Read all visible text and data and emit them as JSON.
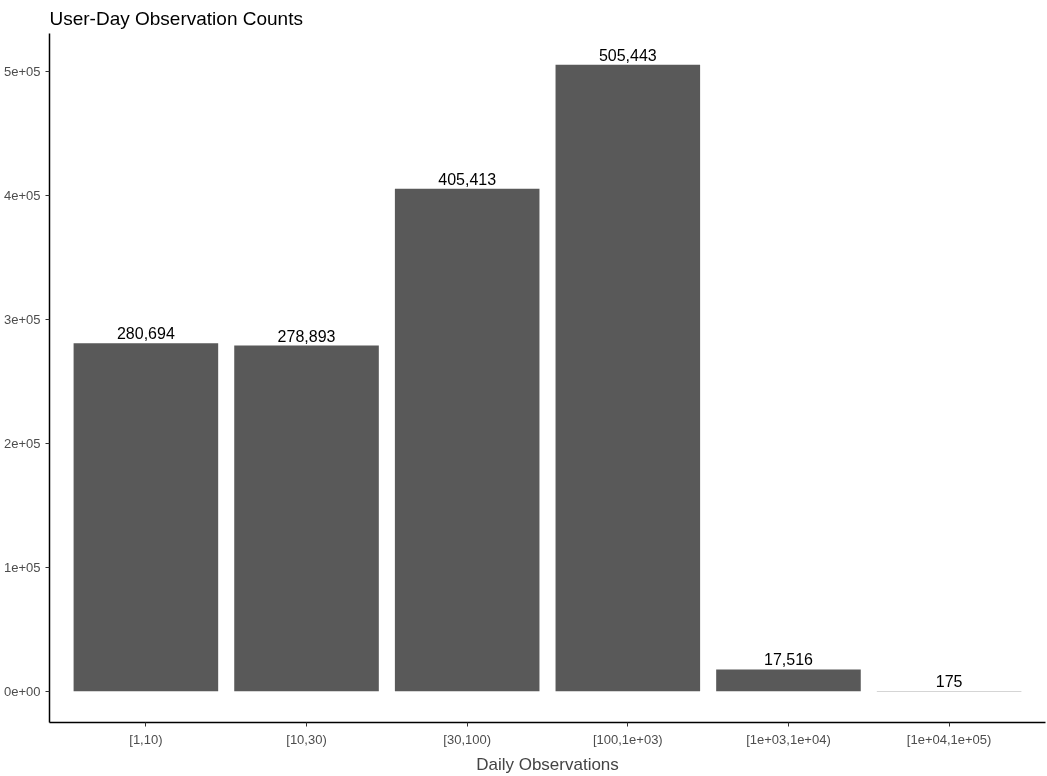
{
  "chart_data": {
    "type": "bar",
    "title": "User-Day Observation Counts",
    "xlabel": "Daily Observations",
    "categories": [
      "[1,10)",
      "[10,30)",
      "[30,100)",
      "[100,1e+03)",
      "[1e+03,1e+04)",
      "[1e+04,1e+05)"
    ],
    "values": [
      280694,
      278893,
      405413,
      505443,
      17516,
      175
    ],
    "color": "#595959",
    "ylim": [
      -25272,
      530715
    ],
    "yticks": [
      {
        "value": 0,
        "label": "0e+00"
      },
      {
        "value": 100000,
        "label": "1e+05"
      },
      {
        "value": 200000,
        "label": "2e+05"
      },
      {
        "value": 300000,
        "label": "3e+05"
      },
      {
        "value": 400000,
        "label": "4e+05"
      },
      {
        "value": 500000,
        "label": "5e+05"
      }
    ],
    "value_labels": [
      "280,694",
      "278,893",
      "405,413",
      "505,443",
      "17,516",
      "175"
    ],
    "grid": false
  }
}
